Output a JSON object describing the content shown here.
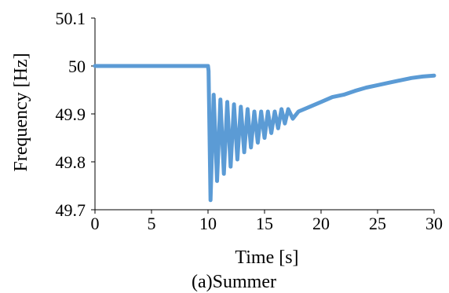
{
  "chart_data": {
    "type": "line",
    "title": "",
    "caption": "(a)Summer",
    "xlabel": "Time [s]",
    "ylabel": "Frequency [Hz]",
    "xlim": [
      0,
      30
    ],
    "ylim": [
      49.7,
      50.1
    ],
    "x_ticks": [
      0,
      5,
      10,
      15,
      20,
      25,
      30
    ],
    "y_ticks": [
      49.7,
      49.8,
      49.9,
      50,
      50.1
    ],
    "x_tick_labels": [
      "0",
      "5",
      "10",
      "15",
      "20",
      "25",
      "30"
    ],
    "y_tick_labels": [
      "49.7",
      "49.8",
      "49.9",
      "50",
      "50.1"
    ],
    "grid": false,
    "legend": "none",
    "series_color": "#5b9bd5",
    "series": [
      {
        "x": [
          0,
          10,
          10.05,
          10.22,
          10.5,
          10.8,
          11.1,
          11.4,
          11.7,
          12.0,
          12.3,
          12.6,
          12.9,
          13.2,
          13.5,
          13.8,
          14.1,
          14.4,
          14.7,
          15.0,
          15.3,
          15.6,
          15.9,
          16.2,
          16.5,
          16.8,
          17.1,
          17.5,
          18.0,
          19.0,
          20.0,
          21.0,
          22.0,
          23.0,
          24.0,
          25.0,
          26.0,
          27.0,
          28.0,
          29.0,
          30.0
        ],
        "y": [
          50.0,
          50.0,
          49.99,
          49.72,
          49.94,
          49.76,
          49.93,
          49.775,
          49.925,
          49.79,
          49.92,
          49.805,
          49.915,
          49.82,
          49.91,
          49.83,
          49.905,
          49.84,
          49.905,
          49.85,
          49.905,
          49.86,
          49.905,
          49.87,
          49.91,
          49.88,
          49.91,
          49.89,
          49.905,
          49.915,
          49.925,
          49.935,
          49.94,
          49.948,
          49.955,
          49.96,
          49.965,
          49.97,
          49.975,
          49.978,
          49.98
        ]
      }
    ]
  }
}
